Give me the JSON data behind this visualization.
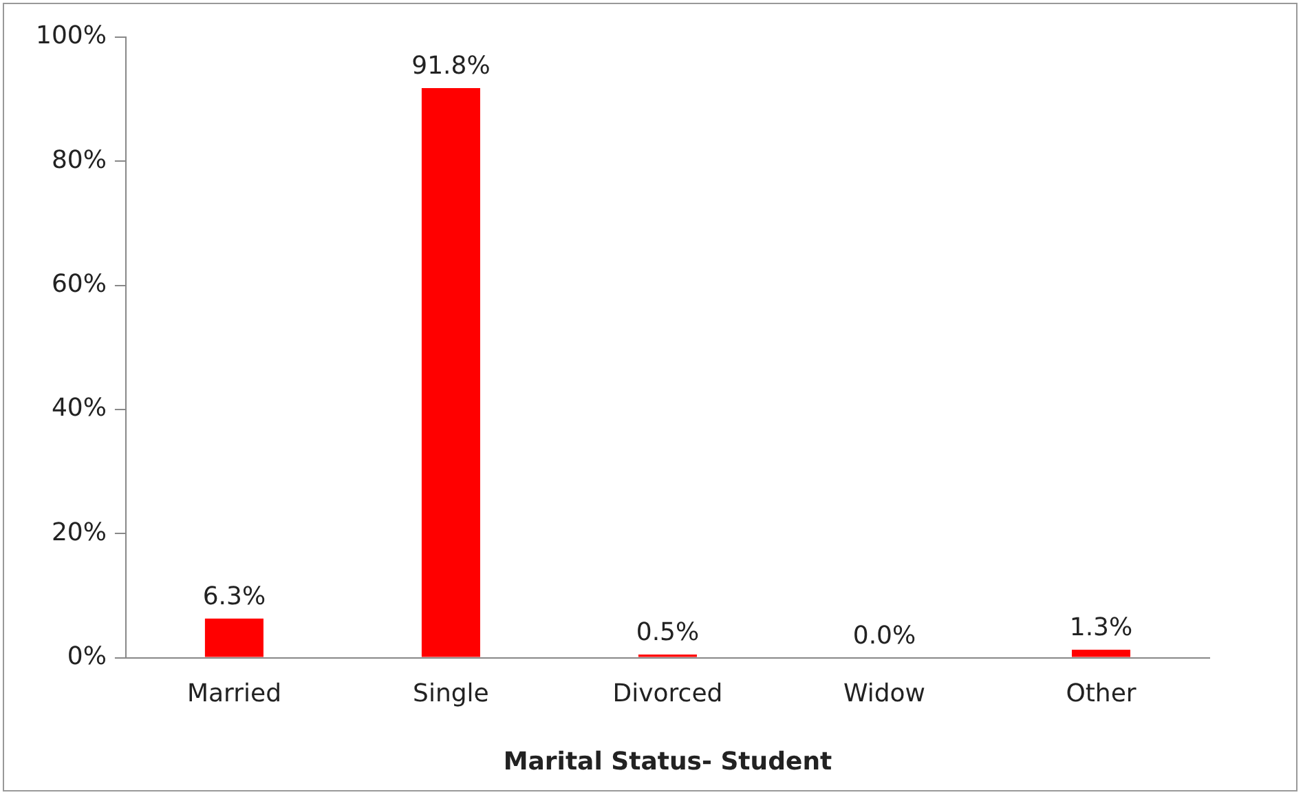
{
  "chart_data": {
    "type": "bar",
    "xlabel": "Marital Status- Student",
    "categories": [
      "Married",
      "Single",
      "Divorced",
      "Widow",
      "Other"
    ],
    "values": [
      6.3,
      91.8,
      0.5,
      0.0,
      1.3
    ],
    "value_labels": [
      "6.3%",
      "91.8%",
      "0.5%",
      "0.0%",
      "1.3%"
    ],
    "color": "#ff0000",
    "ylim": [
      0,
      100
    ],
    "yticks": [
      {
        "value": 0,
        "label": "0%"
      },
      {
        "value": 20,
        "label": "20%"
      },
      {
        "value": 40,
        "label": "40%"
      },
      {
        "value": 60,
        "label": "60%"
      },
      {
        "value": 80,
        "label": "80%"
      },
      {
        "value": 100,
        "label": "100%"
      }
    ]
  }
}
